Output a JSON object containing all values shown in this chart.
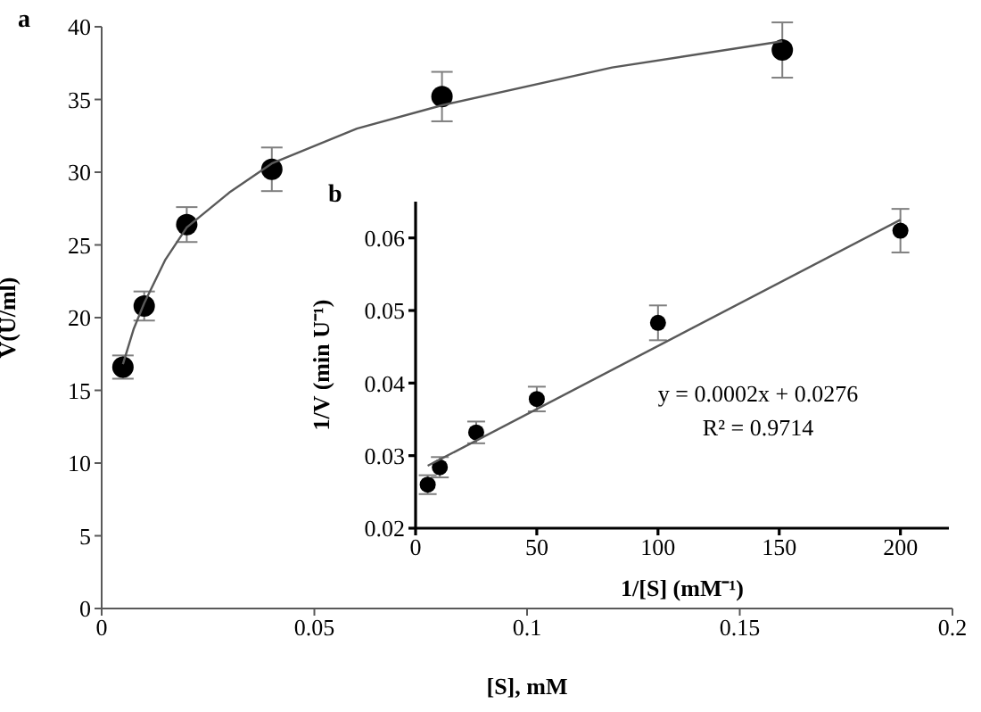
{
  "chart_data": [
    {
      "type": "scatter",
      "xlabel": "[S], mM",
      "ylabel": "V(U/ml)",
      "annotations": [
        "a"
      ],
      "grid": false,
      "legend": false,
      "xlim": [
        0,
        0.2
      ],
      "xticks": [
        0,
        0.05,
        0.1,
        0.15,
        0.2
      ],
      "ylim": [
        0,
        40
      ],
      "yticks": [
        0,
        5,
        10,
        15,
        20,
        25,
        30,
        35,
        40
      ],
      "series": [
        {
          "marker": "circle",
          "color": "#000000",
          "x": [
            0.005,
            0.01,
            0.02,
            0.04,
            0.08,
            0.16
          ],
          "values": [
            16.6,
            20.8,
            26.4,
            30.2,
            35.2,
            38.4
          ],
          "errors": [
            0.8,
            1,
            1.2,
            1.5,
            1.7,
            1.9
          ]
        },
        {
          "type": "line",
          "color": "#595959",
          "x": [
            0.005,
            0.0075,
            0.01,
            0.015,
            0.02,
            0.03,
            0.04,
            0.06,
            0.08,
            0.12,
            0.16
          ],
          "values": [
            16.8,
            19.2,
            21,
            24,
            26.2,
            28.6,
            30.6,
            33,
            34.6,
            37.2,
            39
          ]
        }
      ]
    },
    {
      "type": "scatter",
      "xlabel": "1/[S] (mM⁻¹)",
      "ylabel": "1/V (min U⁻¹)",
      "annotations": [
        "b",
        "y = 0.0002x + 0.0276",
        "R² = 0.9714"
      ],
      "grid": false,
      "legend": false,
      "xlim": [
        0,
        220
      ],
      "xticks": [
        0,
        50,
        100,
        150,
        200
      ],
      "ylim": [
        0.02,
        0.065
      ],
      "yticks": [
        0.02,
        0.03,
        0.04,
        0.05,
        0.06
      ],
      "series": [
        {
          "marker": "circle",
          "color": "#000000",
          "x": [
            5,
            10,
            25,
            50,
            100,
            200
          ],
          "values": [
            0.026,
            0.0284,
            0.0332,
            0.0378,
            0.0483,
            0.061
          ],
          "errors": [
            0.0013,
            0.0014,
            0.0015,
            0.0017,
            0.0024,
            0.003
          ]
        },
        {
          "type": "line",
          "color": "#595959",
          "x": [
            5,
            200
          ],
          "values": [
            0.0286,
            0.0625
          ]
        }
      ]
    }
  ]
}
